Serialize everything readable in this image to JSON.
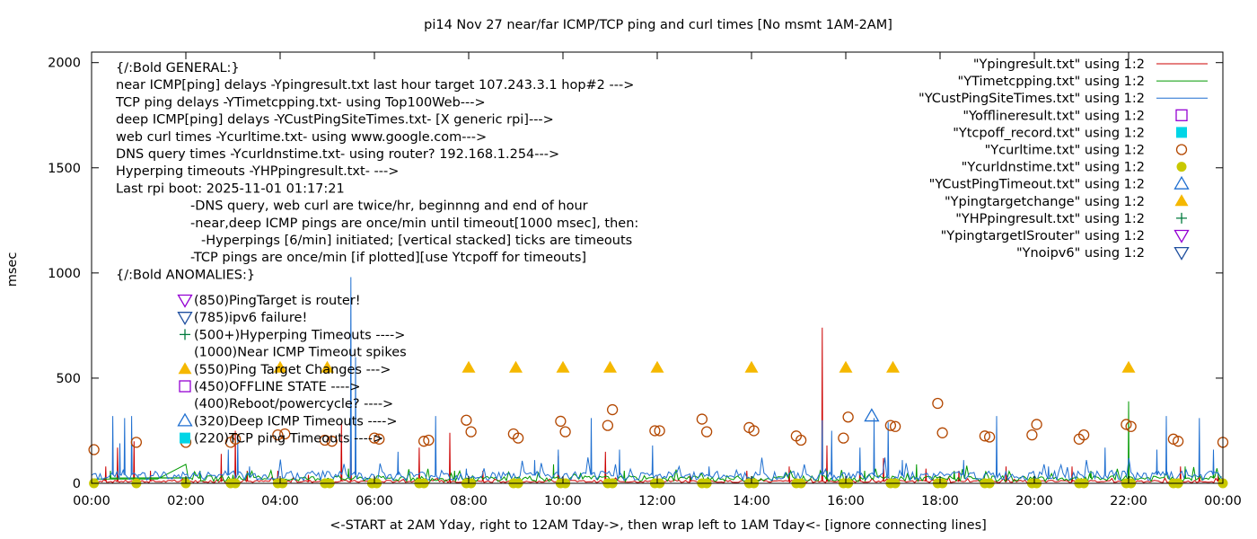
{
  "chart_data": {
    "type": "line",
    "title": "pi14 Nov 27  near/far ICMP/TCP ping and curl times [No msmt 1AM-2AM]",
    "xlabel": "<-START at 2AM Yday, right to 12AM Tday->, then wrap left to 1AM Tday<- [ignore connecting lines]",
    "ylabel": "msec",
    "xlim": [
      0,
      24
    ],
    "ylim": [
      0,
      2050
    ],
    "x_ticks": [
      {
        "v": 0,
        "label": "00:00"
      },
      {
        "v": 2,
        "label": "02:00"
      },
      {
        "v": 4,
        "label": "04:00"
      },
      {
        "v": 6,
        "label": "06:00"
      },
      {
        "v": 8,
        "label": "08:00"
      },
      {
        "v": 10,
        "label": "10:00"
      },
      {
        "v": 12,
        "label": "12:00"
      },
      {
        "v": 14,
        "label": "14:00"
      },
      {
        "v": 16,
        "label": "16:00"
      },
      {
        "v": 18,
        "label": "18:00"
      },
      {
        "v": 20,
        "label": "20:00"
      },
      {
        "v": 22,
        "label": "22:00"
      },
      {
        "v": 24,
        "label": "00:00"
      }
    ],
    "y_ticks": [
      {
        "v": 0,
        "label": "0"
      },
      {
        "v": 500,
        "label": "500"
      },
      {
        "v": 1000,
        "label": "1000"
      },
      {
        "v": 1500,
        "label": "1500"
      },
      {
        "v": 2000,
        "label": "2000"
      }
    ],
    "grid": false,
    "legend_position": "top-right",
    "legend": [
      {
        "label": "\"Ypingresult.txt\" using 1:2",
        "kind": "line",
        "color": "#cc0000"
      },
      {
        "label": "\"YTimetcpping.txt\" using 1:2",
        "kind": "line",
        "color": "#009900"
      },
      {
        "label": "\"YCustPingSiteTimes.txt\" using 1:2",
        "kind": "line",
        "color": "#1f6fd0"
      },
      {
        "label": "\"Yofflineresult.txt\" using 1:2",
        "kind": "open-square",
        "color": "#9400d3"
      },
      {
        "label": "\"Ytcpoff_record.txt\" using 1:2",
        "kind": "filled-square",
        "color": "#00d5e6"
      },
      {
        "label": "\"Ycurltime.txt\" using 1:2",
        "kind": "open-circle",
        "color": "#b34700"
      },
      {
        "label": "\"Ycurldnstime.txt\" using 1:2",
        "kind": "filled-circle",
        "color": "#c8c800"
      },
      {
        "label": "\"YCustPingTimeout.txt\" using 1:2",
        "kind": "open-triangle",
        "color": "#1f6fd0"
      },
      {
        "label": "\"Ypingtargetchange\" using 1:2",
        "kind": "filled-triangle",
        "color": "#f5b800"
      },
      {
        "label": "\"YHPpingresult.txt\" using 1:2",
        "kind": "plus",
        "color": "#007a3d"
      },
      {
        "label": "\"YpingtargetISrouter\" using 1:2",
        "kind": "open-down-triangle",
        "color": "#9400d3"
      },
      {
        "label": "\"Ynoipv6\" using 1:2",
        "kind": "open-down-triangle",
        "color": "#1f4f9f"
      }
    ],
    "notes": [
      {
        "text": "{/:Bold GENERAL:}",
        "indent": 0
      },
      {
        "text": "near ICMP[ping] delays -Ypingresult.txt last hour target 107.243.3.1 hop#2 --->",
        "indent": 0
      },
      {
        "text": "TCP ping delays -YTimetcpping.txt- using Top100Web--->",
        "indent": 0
      },
      {
        "text": "deep ICMP[ping] delays -YCustPingSiteTimes.txt- [X generic rpi]--->",
        "indent": 0
      },
      {
        "text": "web curl times -Ycurltime.txt- using www.google.com--->",
        "indent": 0
      },
      {
        "text": "DNS query times -Ycurldnstime.txt- using router? 192.168.1.254--->",
        "indent": 0
      },
      {
        "text": "Hyperping timeouts -YHPpingresult.txt- --->",
        "indent": 0
      },
      {
        "text": "Last rpi boot: 2025-11-01 01:17:21",
        "indent": 0
      },
      {
        "text": "-DNS query, web curl are twice/hr, beginnng and end of hour",
        "indent": 1
      },
      {
        "text": "-near,deep ICMP pings are once/min until timeout[1000 msec], then:",
        "indent": 1
      },
      {
        "text": "-Hyperpings [6/min] initiated; [vertical stacked] ticks are timeouts",
        "indent": 2
      },
      {
        "text": "-TCP pings are once/min [if plotted][use Ytcpoff for timeouts]",
        "indent": 1
      },
      {
        "text": "{/:Bold ANOMALIES:}",
        "indent": 0
      }
    ],
    "anomalies": [
      {
        "text": "(850)PingTarget is router!",
        "marker": "open-down-triangle",
        "color": "#9400d3"
      },
      {
        "text": "(785)ipv6 failure!",
        "marker": "open-down-triangle",
        "color": "#1f4f9f"
      },
      {
        "text": "(500+)Hyperping Timeouts ---->",
        "marker": "plus",
        "color": "#007a3d"
      },
      {
        "text": "(1000)Near ICMP Timeout spikes",
        "marker": "none",
        "color": ""
      },
      {
        "text": "(550)Ping Target Changes --->",
        "marker": "filled-triangle",
        "color": "#f5b800"
      },
      {
        "text": "(450)OFFLINE STATE ---->",
        "marker": "open-square",
        "color": "#9400d3"
      },
      {
        "text": "(400)Reboot/powercycle? ---->",
        "marker": "none",
        "color": ""
      },
      {
        "text": "(320)Deep ICMP Timeouts ---->",
        "marker": "open-triangle",
        "color": "#1f6fd0"
      },
      {
        "text": "(220)TCP ping Timeouts ---->",
        "marker": "filled-square",
        "color": "#00d5e6"
      }
    ],
    "series": [
      {
        "name": "\"Ypingresult.txt\" using 1:2",
        "color": "#cc0000",
        "baseline": 10,
        "spikes": [
          [
            0.3,
            80
          ],
          [
            0.55,
            170
          ],
          [
            0.9,
            200
          ],
          [
            1.25,
            60
          ],
          [
            2.75,
            140
          ],
          [
            3.05,
            250
          ],
          [
            3.3,
            60
          ],
          [
            3.95,
            60
          ],
          [
            4.6,
            40
          ],
          [
            5.3,
            290
          ],
          [
            5.5,
            440
          ],
          [
            6.95,
            170
          ],
          [
            7.6,
            240
          ],
          [
            8.3,
            60
          ],
          [
            9.9,
            130
          ],
          [
            10.9,
            150
          ],
          [
            12.7,
            40
          ],
          [
            13.9,
            60
          ],
          [
            14.8,
            80
          ],
          [
            15.5,
            740
          ],
          [
            15.6,
            180
          ],
          [
            16.3,
            90
          ],
          [
            16.8,
            120
          ],
          [
            17.7,
            70
          ],
          [
            18.4,
            60
          ],
          [
            19.4,
            80
          ],
          [
            20.8,
            80
          ],
          [
            22.0,
            40
          ],
          [
            23.1,
            80
          ],
          [
            23.5,
            60
          ],
          [
            23.9,
            40
          ]
        ]
      },
      {
        "name": "\"YTimetcpping.txt\" using 1:2",
        "color": "#009900",
        "baseline": 25,
        "points": [
          [
            0.0,
            20
          ],
          [
            1.4,
            20
          ],
          [
            2.0,
            90
          ],
          [
            2.05,
            25
          ]
        ],
        "spikes": [
          [
            0.4,
            60
          ],
          [
            2.3,
            60
          ],
          [
            3.0,
            40
          ],
          [
            5.45,
            70
          ],
          [
            7.7,
            60
          ],
          [
            9.8,
            90
          ],
          [
            11.3,
            60
          ],
          [
            15.6,
            60
          ],
          [
            16.4,
            60
          ],
          [
            17.5,
            90
          ],
          [
            18.3,
            60
          ],
          [
            21.2,
            60
          ],
          [
            22.0,
            390
          ],
          [
            23.2,
            80
          ],
          [
            23.8,
            60
          ]
        ]
      },
      {
        "name": "\"YCustPingSiteTimes.txt\" using 1:2",
        "color": "#1f6fd0",
        "baseline": 40,
        "spikes": [
          [
            0.45,
            320
          ],
          [
            0.6,
            190
          ],
          [
            0.7,
            310
          ],
          [
            0.85,
            320
          ],
          [
            1.0,
            40
          ],
          [
            2.9,
            160
          ],
          [
            3.1,
            210
          ],
          [
            3.35,
            80
          ],
          [
            5.5,
            980
          ],
          [
            5.6,
            600
          ],
          [
            6.5,
            150
          ],
          [
            7.3,
            320
          ],
          [
            7.95,
            70
          ],
          [
            9.4,
            110
          ],
          [
            9.9,
            160
          ],
          [
            10.6,
            310
          ],
          [
            11.2,
            160
          ],
          [
            11.9,
            180
          ],
          [
            13.1,
            80
          ],
          [
            15.5,
            300
          ],
          [
            15.7,
            250
          ],
          [
            16.3,
            170
          ],
          [
            16.6,
            310
          ],
          [
            16.9,
            290
          ],
          [
            17.2,
            110
          ],
          [
            18.5,
            110
          ],
          [
            19.2,
            320
          ],
          [
            20.3,
            80
          ],
          [
            21.5,
            170
          ],
          [
            22.6,
            160
          ],
          [
            22.8,
            320
          ],
          [
            23.5,
            310
          ],
          [
            23.8,
            160
          ]
        ]
      }
    ],
    "markers": [
      {
        "name": "\"Ycurltime.txt\" using 1:2",
        "kind": "open-circle",
        "color": "#b34700",
        "points": [
          [
            0.05,
            160
          ],
          [
            0.95,
            195
          ],
          [
            2.0,
            195
          ],
          [
            2.95,
            195
          ],
          [
            3.05,
            210
          ],
          [
            3.95,
            230
          ],
          [
            4.1,
            235
          ],
          [
            4.95,
            205
          ],
          [
            5.1,
            200
          ],
          [
            6.0,
            215
          ],
          [
            6.1,
            210
          ],
          [
            7.05,
            200
          ],
          [
            7.15,
            205
          ],
          [
            7.95,
            300
          ],
          [
            8.05,
            245
          ],
          [
            8.95,
            235
          ],
          [
            9.05,
            215
          ],
          [
            9.95,
            295
          ],
          [
            10.05,
            245
          ],
          [
            10.95,
            275
          ],
          [
            11.05,
            350
          ],
          [
            11.95,
            250
          ],
          [
            12.05,
            250
          ],
          [
            12.95,
            305
          ],
          [
            13.05,
            245
          ],
          [
            13.95,
            265
          ],
          [
            14.05,
            250
          ],
          [
            14.95,
            225
          ],
          [
            15.05,
            205
          ],
          [
            15.95,
            215
          ],
          [
            16.05,
            315
          ],
          [
            16.95,
            275
          ],
          [
            17.05,
            270
          ],
          [
            17.95,
            380
          ],
          [
            18.05,
            240
          ],
          [
            18.95,
            225
          ],
          [
            19.05,
            220
          ],
          [
            19.95,
            230
          ],
          [
            20.05,
            280
          ],
          [
            20.95,
            210
          ],
          [
            21.05,
            230
          ],
          [
            21.95,
            280
          ],
          [
            22.05,
            270
          ],
          [
            22.95,
            210
          ],
          [
            23.05,
            200
          ],
          [
            24.0,
            195
          ]
        ]
      },
      {
        "name": "\"Ycurldnstime.txt\" using 1:2",
        "kind": "filled-circle",
        "color": "#c8c800",
        "points": [
          [
            0.05,
            0
          ],
          [
            0.95,
            0
          ],
          [
            2.0,
            0
          ],
          [
            2.95,
            0
          ],
          [
            3.05,
            0
          ],
          [
            3.95,
            0
          ],
          [
            4.05,
            0
          ],
          [
            4.95,
            0
          ],
          [
            5.05,
            0
          ],
          [
            5.95,
            0
          ],
          [
            6.05,
            0
          ],
          [
            6.95,
            0
          ],
          [
            7.05,
            0
          ],
          [
            7.95,
            0
          ],
          [
            8.05,
            0
          ],
          [
            8.95,
            0
          ],
          [
            9.05,
            0
          ],
          [
            9.95,
            0
          ],
          [
            10.05,
            0
          ],
          [
            10.95,
            0
          ],
          [
            11.05,
            0
          ],
          [
            11.95,
            0
          ],
          [
            12.05,
            0
          ],
          [
            12.95,
            0
          ],
          [
            13.05,
            0
          ],
          [
            13.95,
            0
          ],
          [
            14.05,
            0
          ],
          [
            14.95,
            0
          ],
          [
            15.05,
            0
          ],
          [
            15.95,
            0
          ],
          [
            16.05,
            0
          ],
          [
            16.95,
            0
          ],
          [
            17.05,
            0
          ],
          [
            17.95,
            0
          ],
          [
            18.05,
            0
          ],
          [
            18.95,
            0
          ],
          [
            19.05,
            0
          ],
          [
            19.95,
            0
          ],
          [
            20.05,
            0
          ],
          [
            20.95,
            0
          ],
          [
            21.05,
            0
          ],
          [
            21.95,
            0
          ],
          [
            22.05,
            0
          ],
          [
            22.95,
            0
          ],
          [
            23.05,
            0
          ],
          [
            24.0,
            0
          ]
        ]
      },
      {
        "name": "\"Ypingtargetchange\" using 1:2",
        "kind": "filled-triangle",
        "color": "#f5b800",
        "points": [
          [
            4.0,
            550
          ],
          [
            5.0,
            550
          ],
          [
            8.0,
            550
          ],
          [
            9.0,
            550
          ],
          [
            10.0,
            550
          ],
          [
            11.0,
            550
          ],
          [
            12.0,
            550
          ],
          [
            14.0,
            550
          ],
          [
            16.0,
            550
          ],
          [
            17.0,
            550
          ],
          [
            22.0,
            550
          ]
        ]
      },
      {
        "name": "\"YCustPingTimeout.txt\" using 1:2",
        "kind": "open-triangle",
        "color": "#1f6fd0",
        "points": [
          [
            16.55,
            320
          ]
        ]
      }
    ]
  }
}
